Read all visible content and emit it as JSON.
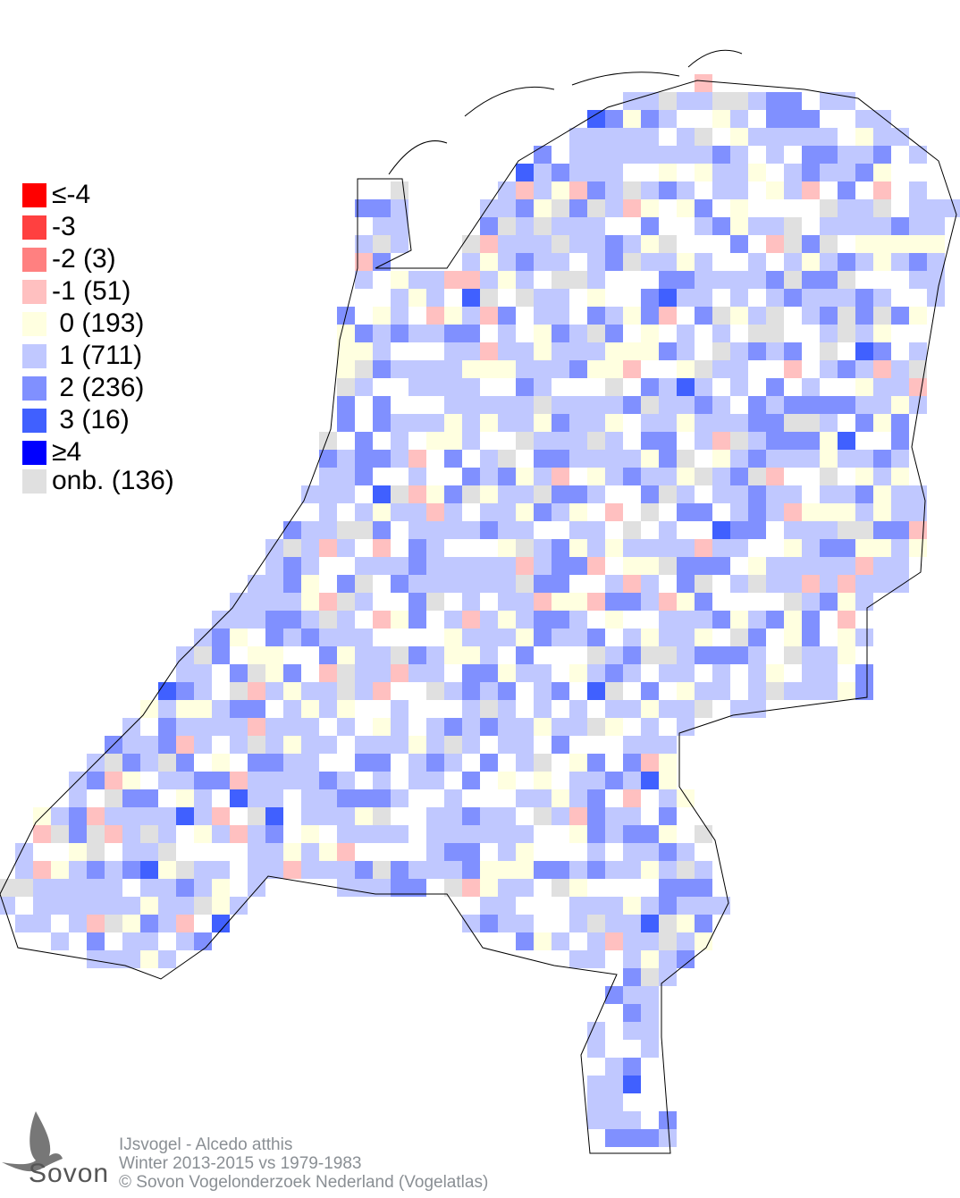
{
  "legend": {
    "items": [
      {
        "label": "≤-4",
        "color": "#ff0000"
      },
      {
        "label": "-3",
        "color": "#ff4040"
      },
      {
        "label": "-2 (3)",
        "color": "#ff8080"
      },
      {
        "label": "-1 (51)",
        "color": "#ffc0c0"
      },
      {
        "label": " 0 (193)",
        "color": "#ffffe0"
      },
      {
        "label": " 1 (711)",
        "color": "#c0c8ff"
      },
      {
        "label": " 2 (236)",
        "color": "#8090ff"
      },
      {
        "label": " 3 (16)",
        "color": "#4060ff"
      },
      {
        "label": "≥4",
        "color": "#0000ff"
      },
      {
        "label": "onb. (136)",
        "color": "#e0e0e0"
      }
    ]
  },
  "caption": {
    "species": "IJsvogel - Alcedo atthis",
    "period": "Winter 2013-2015 vs 1979-1983",
    "copyright": "© Sovon Vogelonderzoek Nederland (Vogelatlas)"
  },
  "logo": {
    "text": "Sovon"
  }
}
